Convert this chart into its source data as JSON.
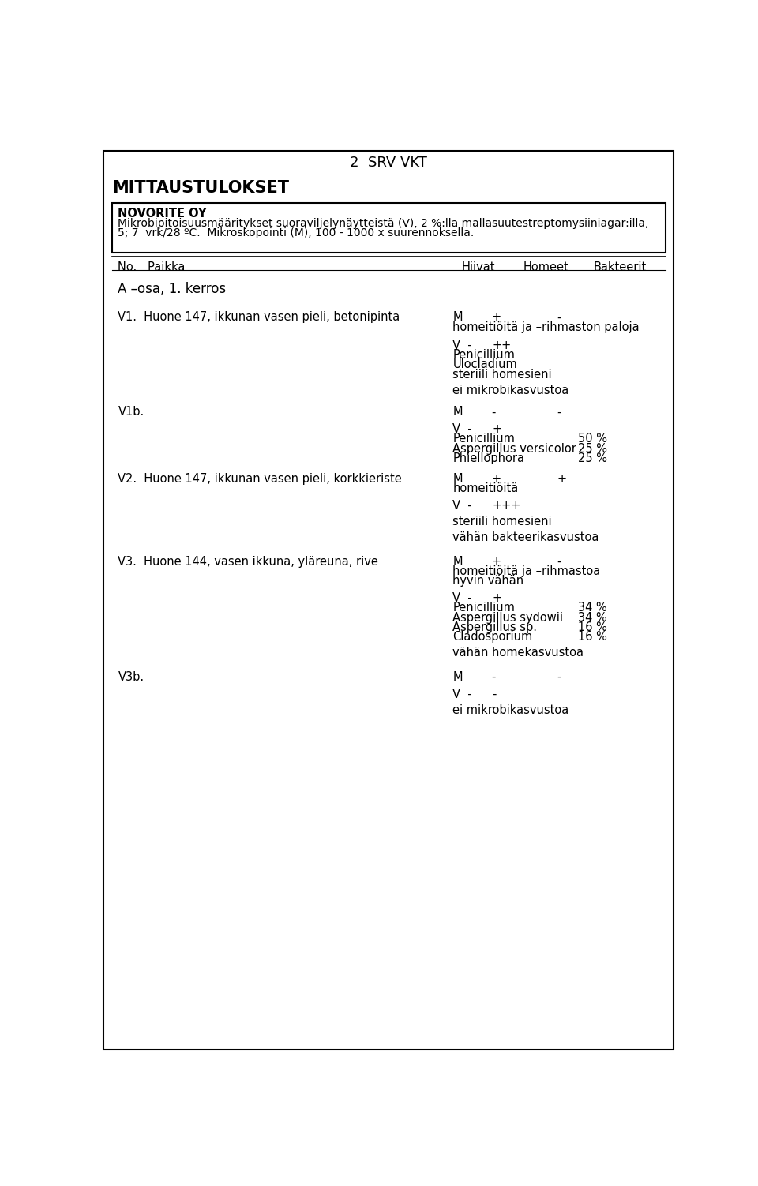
{
  "page_title": "2  SRV VKT",
  "section_title": "MITTAUSTULOKSET",
  "box_line1": "NOVORITE OY",
  "box_line2": "Mikrobipitoisuusmääritykset suoraviljelynäytteistä (V), 2 %:lla mallasuutestreptomysiiniagar:illa,",
  "box_line3": "5; 7  vrk/28 ºC.  Mikroskopointi (M), 100 - 1000 x suurennoksella.",
  "section_header": "A –osa, 1. kerros",
  "bg_color": "#ffffff",
  "text_color": "#000000"
}
